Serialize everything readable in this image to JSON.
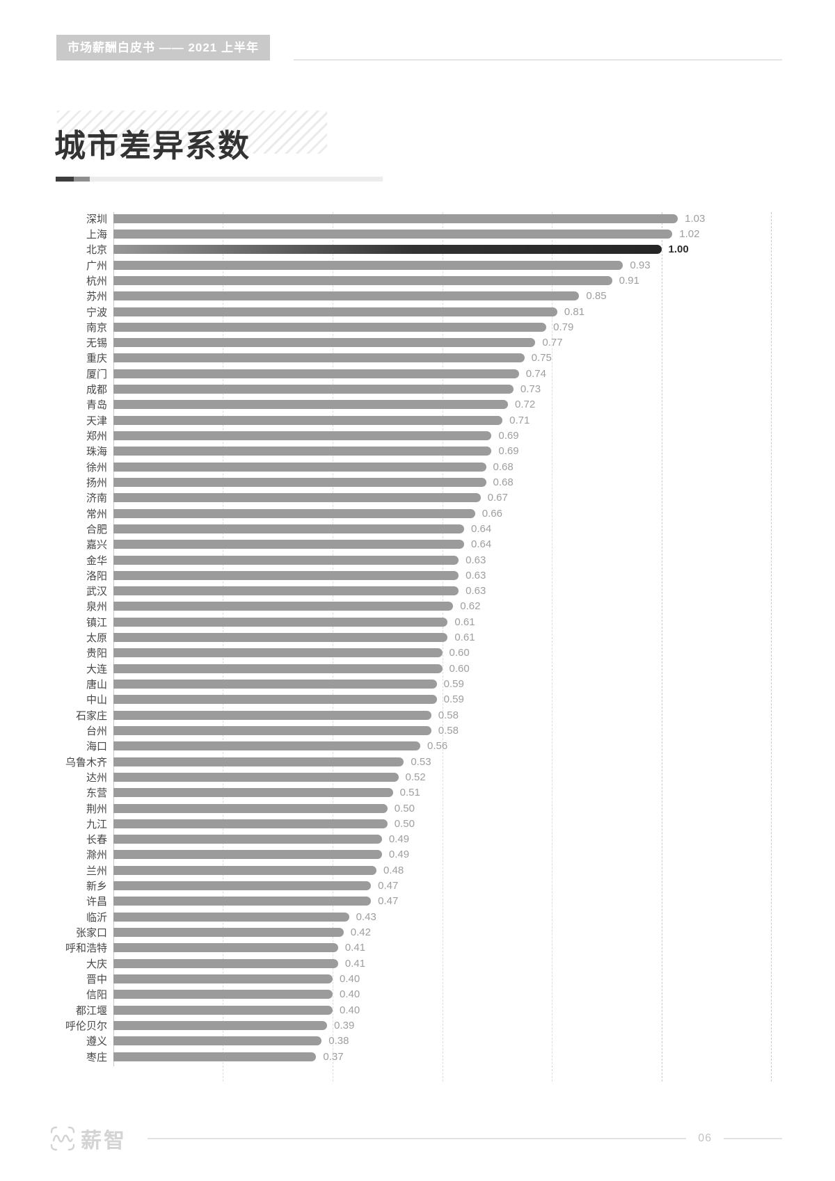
{
  "header": {
    "badge": "市场薪酬白皮书 —— 2021 上半年"
  },
  "title": "城市差异系数",
  "footer": {
    "brand": "薪智",
    "page_number": "06"
  },
  "colors": {
    "bar": "#9b9b9b",
    "highlight_bar": "#2e2e2e",
    "value_label": "#9e9e9e",
    "badge_bg": "#c9c9c9",
    "title_text": "#333333"
  },
  "chart_data": {
    "type": "bar",
    "orientation": "horizontal",
    "title": "城市差异系数",
    "xlabel": "",
    "ylabel": "",
    "xlim": [
      0,
      1.2
    ],
    "gridlines": [
      0.2,
      0.4,
      0.6,
      0.8,
      1.0,
      1.2
    ],
    "grid_style": "dashed-vertical",
    "legend": "none",
    "highlight_category": "北京",
    "categories": [
      "深圳",
      "上海",
      "北京",
      "广州",
      "杭州",
      "苏州",
      "宁波",
      "南京",
      "无锡",
      "重庆",
      "厦门",
      "成都",
      "青岛",
      "天津",
      "郑州",
      "珠海",
      "徐州",
      "扬州",
      "济南",
      "常州",
      "合肥",
      "嘉兴",
      "金华",
      "洛阳",
      "武汉",
      "泉州",
      "镇江",
      "太原",
      "贵阳",
      "大连",
      "唐山",
      "中山",
      "石家庄",
      "台州",
      "海口",
      "乌鲁木齐",
      "达州",
      "东营",
      "荆州",
      "九江",
      "长春",
      "滁州",
      "兰州",
      "新乡",
      "许昌",
      "临沂",
      "张家口",
      "呼和浩特",
      "大庆",
      "晋中",
      "信阳",
      "都江堰",
      "呼伦贝尔",
      "遵义",
      "枣庄"
    ],
    "values": [
      1.03,
      1.02,
      1.0,
      0.93,
      0.91,
      0.85,
      0.81,
      0.79,
      0.77,
      0.75,
      0.74,
      0.73,
      0.72,
      0.71,
      0.69,
      0.69,
      0.68,
      0.68,
      0.67,
      0.66,
      0.64,
      0.64,
      0.63,
      0.63,
      0.63,
      0.62,
      0.61,
      0.61,
      0.6,
      0.6,
      0.59,
      0.59,
      0.58,
      0.58,
      0.56,
      0.53,
      0.52,
      0.51,
      0.5,
      0.5,
      0.49,
      0.49,
      0.48,
      0.47,
      0.47,
      0.43,
      0.42,
      0.41,
      0.41,
      0.4,
      0.4,
      0.4,
      0.39,
      0.38,
      0.37
    ],
    "value_labels": [
      "1.03",
      "1.02",
      "1.00",
      "0.93",
      "0.91",
      "0.85",
      "0.81",
      "0.79",
      "0.77",
      "0.75",
      "0.74",
      "0.73",
      "0.72",
      "0.71",
      "0.69",
      "0.69",
      "0.68",
      "0.68",
      "0.67",
      "0.66",
      "0.64",
      "0.64",
      "0.63",
      "0.63",
      "0.63",
      "0.62",
      "0.61",
      "0.61",
      "0.60",
      "0.60",
      "0.59",
      "0.59",
      "0.58",
      "0.58",
      "0.56",
      "0.53",
      "0.52",
      "0.51",
      "0.50",
      "0.50",
      "0.49",
      "0.49",
      "0.48",
      "0.47",
      "0.47",
      "0.43",
      "0.42",
      "0.41",
      "0.41",
      "0.40",
      "0.40",
      "0.40",
      "0.39",
      "0.38",
      "0.37"
    ]
  }
}
